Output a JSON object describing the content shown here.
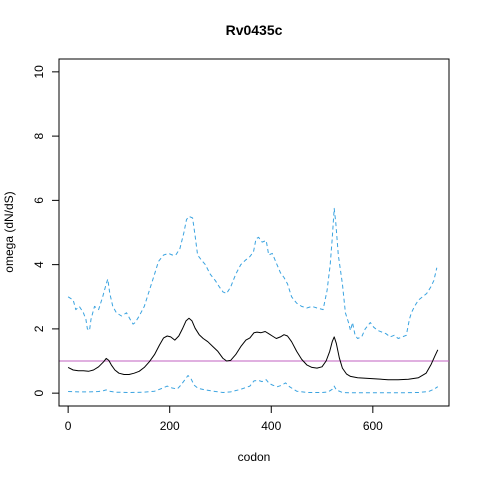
{
  "chart_data": {
    "type": "line",
    "title": "Rv0435c",
    "xlabel": "codon",
    "ylabel": "omega (dN/dS)",
    "xlim": [
      -18,
      750
    ],
    "ylim": [
      -0.4,
      10.4
    ],
    "x_ticks": [
      0,
      200,
      400,
      600
    ],
    "y_ticks": [
      0,
      2,
      4,
      6,
      8,
      10
    ],
    "reference_line": {
      "y": 1,
      "color": "#c060c0"
    },
    "grid": false,
    "legend": "none",
    "series": [
      {
        "role": "upper",
        "color": "#3aa3e0",
        "dash": "dashed",
        "points": [
          [
            0,
            3.0
          ],
          [
            10,
            2.9
          ],
          [
            15,
            2.6
          ],
          [
            22,
            2.7
          ],
          [
            30,
            2.5
          ],
          [
            35,
            2.3
          ],
          [
            38,
            2.0
          ],
          [
            42,
            1.95
          ],
          [
            45,
            2.3
          ],
          [
            52,
            2.7
          ],
          [
            60,
            2.6
          ],
          [
            68,
            3.0
          ],
          [
            75,
            3.4
          ],
          [
            78,
            3.55
          ],
          [
            82,
            3.1
          ],
          [
            88,
            2.7
          ],
          [
            95,
            2.5
          ],
          [
            105,
            2.4
          ],
          [
            115,
            2.5
          ],
          [
            122,
            2.3
          ],
          [
            128,
            2.15
          ],
          [
            132,
            2.2
          ],
          [
            140,
            2.4
          ],
          [
            150,
            2.7
          ],
          [
            160,
            3.2
          ],
          [
            170,
            3.7
          ],
          [
            178,
            4.1
          ],
          [
            188,
            4.3
          ],
          [
            198,
            4.35
          ],
          [
            205,
            4.3
          ],
          [
            212,
            4.3
          ],
          [
            220,
            4.5
          ],
          [
            228,
            5.0
          ],
          [
            233,
            5.4
          ],
          [
            238,
            5.5
          ],
          [
            245,
            5.45
          ],
          [
            250,
            4.9
          ],
          [
            255,
            4.3
          ],
          [
            262,
            4.15
          ],
          [
            270,
            4.0
          ],
          [
            280,
            3.7
          ],
          [
            290,
            3.5
          ],
          [
            298,
            3.3
          ],
          [
            305,
            3.15
          ],
          [
            312,
            3.1
          ],
          [
            320,
            3.3
          ],
          [
            330,
            3.7
          ],
          [
            340,
            4.0
          ],
          [
            350,
            4.15
          ],
          [
            358,
            4.25
          ],
          [
            365,
            4.4
          ],
          [
            370,
            4.8
          ],
          [
            375,
            4.85
          ],
          [
            382,
            4.7
          ],
          [
            390,
            4.75
          ],
          [
            395,
            4.3
          ],
          [
            402,
            4.35
          ],
          [
            410,
            4.05
          ],
          [
            418,
            3.75
          ],
          [
            425,
            3.6
          ],
          [
            432,
            3.4
          ],
          [
            440,
            3.0
          ],
          [
            450,
            2.8
          ],
          [
            460,
            2.7
          ],
          [
            470,
            2.65
          ],
          [
            480,
            2.7
          ],
          [
            490,
            2.65
          ],
          [
            502,
            2.6
          ],
          [
            510,
            3.2
          ],
          [
            516,
            4.0
          ],
          [
            520,
            4.8
          ],
          [
            524,
            5.75
          ],
          [
            527,
            5.3
          ],
          [
            532,
            4.3
          ],
          [
            540,
            3.4
          ],
          [
            546,
            2.5
          ],
          [
            552,
            2.2
          ],
          [
            556,
            1.95
          ],
          [
            560,
            2.2
          ],
          [
            565,
            1.8
          ],
          [
            570,
            1.7
          ],
          [
            578,
            1.75
          ],
          [
            585,
            2.0
          ],
          [
            590,
            2.1
          ],
          [
            595,
            2.2
          ],
          [
            602,
            2.05
          ],
          [
            610,
            1.95
          ],
          [
            618,
            1.9
          ],
          [
            626,
            1.85
          ],
          [
            634,
            1.75
          ],
          [
            642,
            1.8
          ],
          [
            650,
            1.7
          ],
          [
            658,
            1.75
          ],
          [
            666,
            1.8
          ],
          [
            672,
            2.3
          ],
          [
            676,
            2.5
          ],
          [
            682,
            2.7
          ],
          [
            690,
            2.9
          ],
          [
            698,
            3.0
          ],
          [
            706,
            3.1
          ],
          [
            714,
            3.3
          ],
          [
            720,
            3.5
          ],
          [
            726,
            3.9
          ]
        ]
      },
      {
        "role": "estimate",
        "color": "#000000",
        "dash": "solid",
        "points": [
          [
            0,
            0.8
          ],
          [
            10,
            0.72
          ],
          [
            20,
            0.7
          ],
          [
            30,
            0.7
          ],
          [
            40,
            0.68
          ],
          [
            50,
            0.72
          ],
          [
            60,
            0.82
          ],
          [
            70,
            0.98
          ],
          [
            75,
            1.08
          ],
          [
            80,
            1.02
          ],
          [
            85,
            0.88
          ],
          [
            92,
            0.72
          ],
          [
            100,
            0.62
          ],
          [
            110,
            0.58
          ],
          [
            120,
            0.58
          ],
          [
            130,
            0.62
          ],
          [
            140,
            0.68
          ],
          [
            150,
            0.8
          ],
          [
            160,
            0.98
          ],
          [
            170,
            1.2
          ],
          [
            180,
            1.5
          ],
          [
            188,
            1.72
          ],
          [
            195,
            1.78
          ],
          [
            202,
            1.75
          ],
          [
            210,
            1.65
          ],
          [
            218,
            1.78
          ],
          [
            225,
            2.0
          ],
          [
            232,
            2.25
          ],
          [
            238,
            2.33
          ],
          [
            244,
            2.25
          ],
          [
            250,
            2.02
          ],
          [
            258,
            1.82
          ],
          [
            266,
            1.7
          ],
          [
            275,
            1.6
          ],
          [
            285,
            1.45
          ],
          [
            295,
            1.3
          ],
          [
            305,
            1.08
          ],
          [
            312,
            1.0
          ],
          [
            320,
            1.02
          ],
          [
            330,
            1.2
          ],
          [
            340,
            1.45
          ],
          [
            350,
            1.65
          ],
          [
            358,
            1.72
          ],
          [
            366,
            1.88
          ],
          [
            372,
            1.9
          ],
          [
            380,
            1.88
          ],
          [
            388,
            1.92
          ],
          [
            395,
            1.85
          ],
          [
            402,
            1.78
          ],
          [
            410,
            1.7
          ],
          [
            418,
            1.75
          ],
          [
            425,
            1.82
          ],
          [
            432,
            1.78
          ],
          [
            440,
            1.6
          ],
          [
            450,
            1.3
          ],
          [
            460,
            1.05
          ],
          [
            470,
            0.88
          ],
          [
            480,
            0.8
          ],
          [
            490,
            0.78
          ],
          [
            500,
            0.82
          ],
          [
            508,
            1.0
          ],
          [
            515,
            1.3
          ],
          [
            520,
            1.6
          ],
          [
            524,
            1.75
          ],
          [
            528,
            1.55
          ],
          [
            534,
            1.1
          ],
          [
            540,
            0.78
          ],
          [
            548,
            0.6
          ],
          [
            556,
            0.52
          ],
          [
            570,
            0.48
          ],
          [
            590,
            0.46
          ],
          [
            610,
            0.44
          ],
          [
            630,
            0.42
          ],
          [
            650,
            0.42
          ],
          [
            670,
            0.43
          ],
          [
            690,
            0.48
          ],
          [
            705,
            0.62
          ],
          [
            715,
            0.9
          ],
          [
            722,
            1.15
          ],
          [
            728,
            1.35
          ]
        ]
      },
      {
        "role": "lower",
        "color": "#3aa3e0",
        "dash": "dashed",
        "points": [
          [
            0,
            0.05
          ],
          [
            20,
            0.04
          ],
          [
            40,
            0.04
          ],
          [
            60,
            0.05
          ],
          [
            70,
            0.08
          ],
          [
            75,
            0.1
          ],
          [
            80,
            0.06
          ],
          [
            95,
            0.03
          ],
          [
            120,
            0.02
          ],
          [
            150,
            0.03
          ],
          [
            170,
            0.06
          ],
          [
            185,
            0.15
          ],
          [
            195,
            0.22
          ],
          [
            205,
            0.16
          ],
          [
            215,
            0.13
          ],
          [
            222,
            0.25
          ],
          [
            230,
            0.42
          ],
          [
            236,
            0.55
          ],
          [
            242,
            0.45
          ],
          [
            248,
            0.25
          ],
          [
            256,
            0.15
          ],
          [
            270,
            0.1
          ],
          [
            290,
            0.05
          ],
          [
            305,
            0.02
          ],
          [
            320,
            0.04
          ],
          [
            340,
            0.12
          ],
          [
            358,
            0.22
          ],
          [
            366,
            0.38
          ],
          [
            374,
            0.4
          ],
          [
            382,
            0.36
          ],
          [
            390,
            0.42
          ],
          [
            396,
            0.3
          ],
          [
            404,
            0.24
          ],
          [
            412,
            0.2
          ],
          [
            420,
            0.24
          ],
          [
            428,
            0.32
          ],
          [
            436,
            0.2
          ],
          [
            450,
            0.06
          ],
          [
            470,
            0.02
          ],
          [
            500,
            0.02
          ],
          [
            512,
            0.04
          ],
          [
            520,
            0.12
          ],
          [
            524,
            0.22
          ],
          [
            528,
            0.1
          ],
          [
            540,
            0.02
          ],
          [
            560,
            0.01
          ],
          [
            600,
            0.01
          ],
          [
            650,
            0.01
          ],
          [
            690,
            0.02
          ],
          [
            710,
            0.05
          ],
          [
            720,
            0.12
          ],
          [
            728,
            0.2
          ]
        ]
      }
    ]
  }
}
